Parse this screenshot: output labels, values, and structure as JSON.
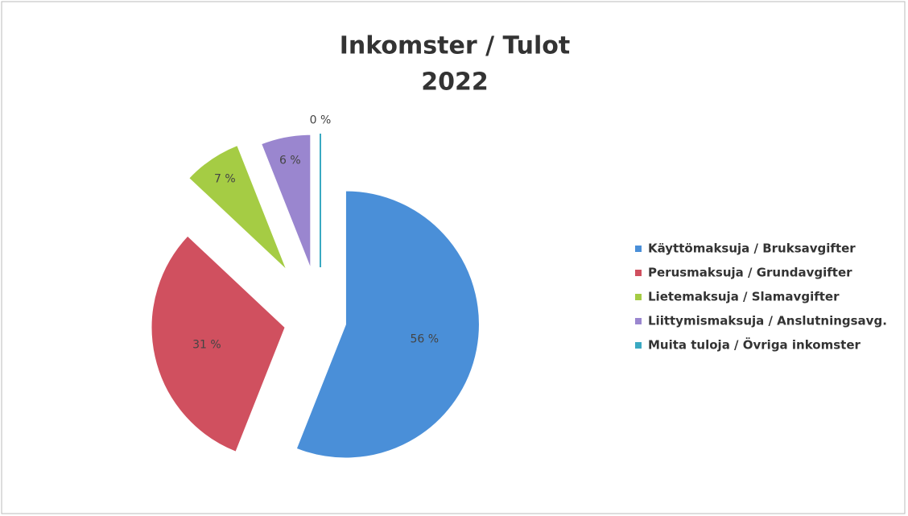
{
  "chart_data": {
    "type": "pie",
    "title": "Inkomster / Tulot",
    "subtitle": "2022",
    "categories": [
      "Käyttömaksuja / Bruksavgifter",
      "Perusmaksuja / Grundavgifter",
      "Lietemaksuja / Slamavgifter",
      "Liittymismaksuja / Anslutningsavg.",
      "Muita tuloja / Övriga inkomster"
    ],
    "values": [
      56,
      31,
      7,
      6,
      0
    ],
    "value_labels": [
      "56 %",
      "31 %",
      "7 %",
      "6 %",
      "0 %"
    ],
    "colors": [
      "#4a8fd8",
      "#d0505f",
      "#a5cc44",
      "#9a86cf",
      "#3aa9c2"
    ],
    "legend": "right"
  }
}
